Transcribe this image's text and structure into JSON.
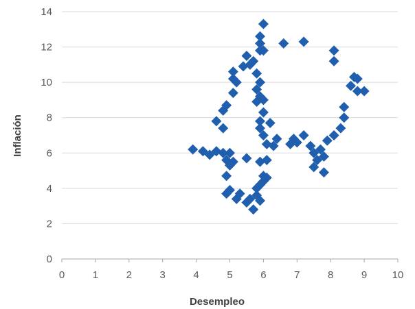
{
  "chart_data": {
    "type": "scatter",
    "xlabel": "Desempleo",
    "ylabel": "Inflación",
    "xlim": [
      0,
      10
    ],
    "ylim": [
      0,
      14
    ],
    "x_ticks": [
      0,
      1,
      2,
      3,
      4,
      5,
      6,
      7,
      8,
      9,
      10
    ],
    "y_ticks": [
      0,
      2,
      4,
      6,
      8,
      10,
      12,
      14
    ],
    "grid": "horizontal",
    "legend": "none",
    "marker": "diamond",
    "colors": {
      "marker": "#1F5FAD",
      "grid": "#D9D9D9",
      "axis": "#A6A6A6"
    },
    "series": [
      {
        "points": [
          [
            3.9,
            6.2
          ],
          [
            4.2,
            6.1
          ],
          [
            4.4,
            5.9
          ],
          [
            4.6,
            6.1
          ],
          [
            4.8,
            6.0
          ],
          [
            5.0,
            6.0
          ],
          [
            4.9,
            5.6
          ],
          [
            5.0,
            5.3
          ],
          [
            4.9,
            4.7
          ],
          [
            5.1,
            5.5
          ],
          [
            4.9,
            3.7
          ],
          [
            5.0,
            3.9
          ],
          [
            5.2,
            3.4
          ],
          [
            5.3,
            3.7
          ],
          [
            5.5,
            5.7
          ],
          [
            5.5,
            3.2
          ],
          [
            5.7,
            2.8
          ],
          [
            5.6,
            3.4
          ],
          [
            5.8,
            3.6
          ],
          [
            5.9,
            3.3
          ],
          [
            5.8,
            4.0
          ],
          [
            5.9,
            4.2
          ],
          [
            5.9,
            5.5
          ],
          [
            6.0,
            4.7
          ],
          [
            6.1,
            5.6
          ],
          [
            6.1,
            4.6
          ],
          [
            6.0,
            4.4
          ],
          [
            4.8,
            7.4
          ],
          [
            4.6,
            7.8
          ],
          [
            4.8,
            8.4
          ],
          [
            4.9,
            8.7
          ],
          [
            5.1,
            9.4
          ],
          [
            5.1,
            10.2
          ],
          [
            5.1,
            10.6
          ],
          [
            5.2,
            10.0
          ],
          [
            5.4,
            10.9
          ],
          [
            5.5,
            11.5
          ],
          [
            5.6,
            11.0
          ],
          [
            5.7,
            11.2
          ],
          [
            5.8,
            10.5
          ],
          [
            5.8,
            9.6
          ],
          [
            5.9,
            10.0
          ],
          [
            5.8,
            8.9
          ],
          [
            5.9,
            9.2
          ],
          [
            6.0,
            9.0
          ],
          [
            6.0,
            8.3
          ],
          [
            5.9,
            7.8
          ],
          [
            5.9,
            7.4
          ],
          [
            6.0,
            7.0
          ],
          [
            6.1,
            6.5
          ],
          [
            6.2,
            7.7
          ],
          [
            6.3,
            6.4
          ],
          [
            6.4,
            6.8
          ],
          [
            5.9,
            11.8
          ],
          [
            5.9,
            12.2
          ],
          [
            6.0,
            11.8
          ],
          [
            5.9,
            12.6
          ],
          [
            6.0,
            13.3
          ],
          [
            6.6,
            12.2
          ],
          [
            7.2,
            12.3
          ],
          [
            6.8,
            6.5
          ],
          [
            6.9,
            6.8
          ],
          [
            7.0,
            6.6
          ],
          [
            7.2,
            7.0
          ],
          [
            7.4,
            6.4
          ],
          [
            7.5,
            5.2
          ],
          [
            7.5,
            6.0
          ],
          [
            7.6,
            5.6
          ],
          [
            7.7,
            6.2
          ],
          [
            7.8,
            5.8
          ],
          [
            7.8,
            4.9
          ],
          [
            7.9,
            6.7
          ],
          [
            8.1,
            7.0
          ],
          [
            8.3,
            7.4
          ],
          [
            8.4,
            8.0
          ],
          [
            8.4,
            8.6
          ],
          [
            8.6,
            9.8
          ],
          [
            8.7,
            10.3
          ],
          [
            8.8,
            9.5
          ],
          [
            8.8,
            10.2
          ],
          [
            9.0,
            9.5
          ],
          [
            8.1,
            11.8
          ],
          [
            8.1,
            11.2
          ]
        ]
      }
    ]
  }
}
